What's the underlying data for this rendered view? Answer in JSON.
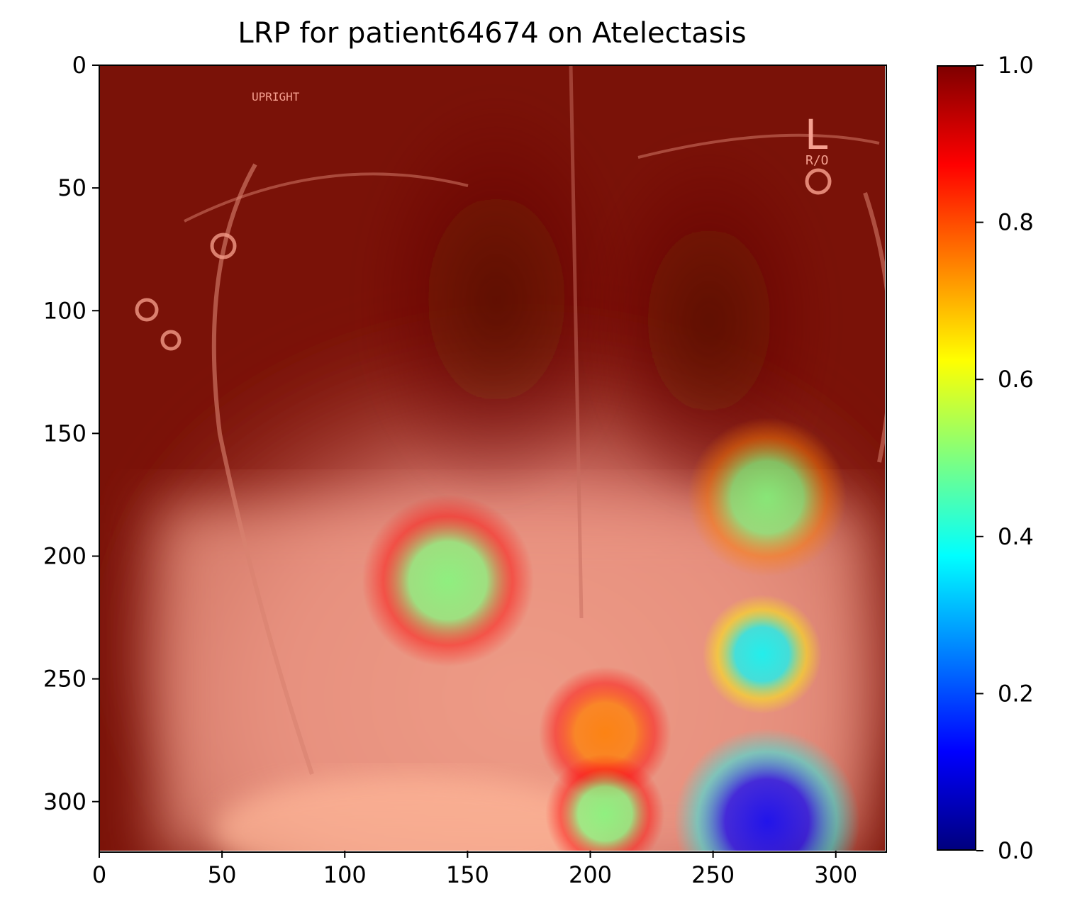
{
  "chart_data": {
    "type": "heatmap",
    "title": "LRP for patient64674 on Atelectasis",
    "xlabel": "",
    "ylabel": "",
    "x_ticks": [
      0,
      50,
      100,
      150,
      200,
      250,
      300
    ],
    "y_ticks": [
      0,
      50,
      100,
      150,
      200,
      250,
      300
    ],
    "xlim": [
      0,
      320
    ],
    "ylim": [
      320,
      0
    ],
    "image_overlay_text": [
      "UPRIGHT",
      "L",
      "R/O"
    ],
    "colorbar": {
      "colormap": "jet",
      "range": [
        0.0,
        1.0
      ],
      "ticks": [
        "0.0",
        "0.2",
        "0.4",
        "0.6",
        "0.8",
        "1.0"
      ],
      "colors": [
        "#00007f",
        "#0000ff",
        "#007fff",
        "#00ffff",
        "#7fff7f",
        "#ffff00",
        "#ff7f00",
        "#ff0000",
        "#7f0000"
      ]
    },
    "relevance_spots": [
      {
        "x": 272,
        "y": 308,
        "value": 0.15,
        "spread": 28
      },
      {
        "x": 272,
        "y": 176,
        "value": 0.52,
        "spread": 24
      },
      {
        "x": 142,
        "y": 210,
        "value": 0.62,
        "spread": 26
      },
      {
        "x": 270,
        "y": 240,
        "value": 0.4,
        "spread": 18
      },
      {
        "x": 206,
        "y": 272,
        "value": 0.75,
        "spread": 20
      },
      {
        "x": 206,
        "y": 305,
        "value": 0.6,
        "spread": 18
      }
    ],
    "grid": false
  },
  "colors": {
    "background_relevance": "#7a1208",
    "lower_field": "#f0a08c"
  }
}
